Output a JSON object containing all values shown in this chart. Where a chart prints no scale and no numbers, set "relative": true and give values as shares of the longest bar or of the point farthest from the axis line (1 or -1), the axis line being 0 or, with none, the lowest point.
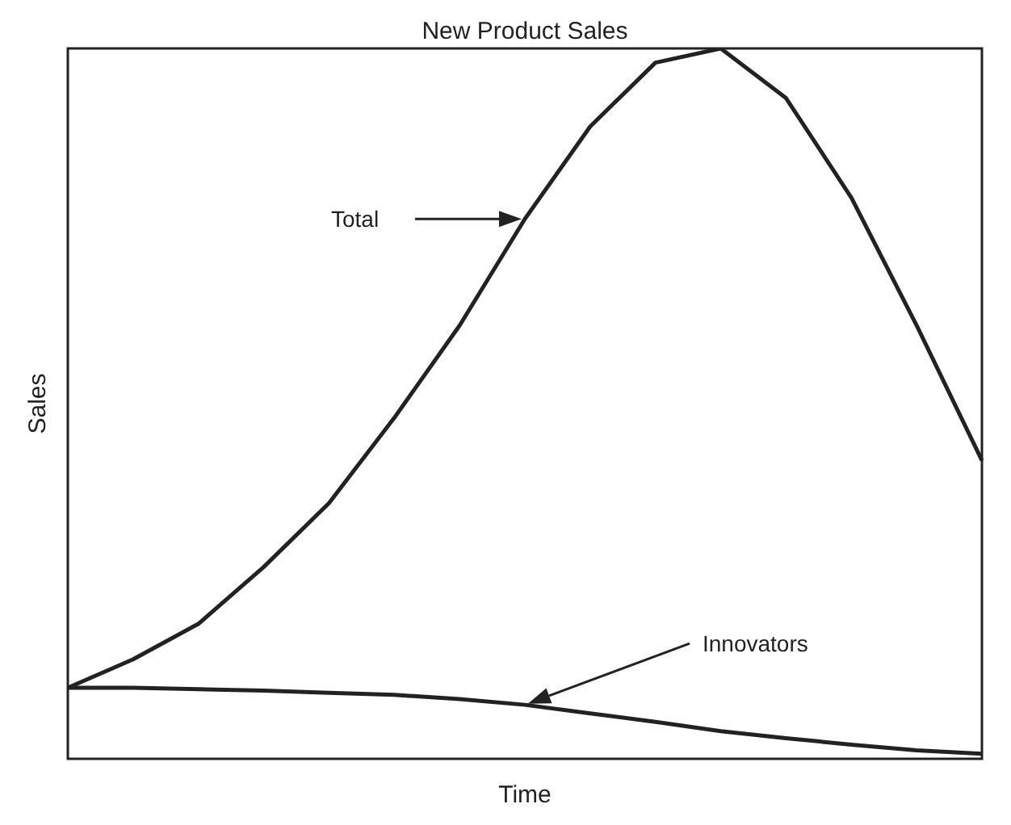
{
  "chart_data": {
    "type": "line",
    "title": "New Product Sales",
    "xlabel": "Time",
    "ylabel": "Sales",
    "relative": true,
    "categories": [
      null,
      null,
      null,
      null,
      null,
      null,
      null,
      null,
      null,
      null,
      null,
      null,
      null,
      null,
      null
    ],
    "series": [
      {
        "name": "Total",
        "color": "#222222",
        "values": [
          0.1,
          0.14,
          0.19,
          0.27,
          0.36,
          0.48,
          0.61,
          0.76,
          0.89,
          0.98,
          1.0,
          0.93,
          0.79,
          0.61,
          0.42
        ]
      },
      {
        "name": "Innovators",
        "color": "#222222",
        "values": [
          0.1,
          0.1,
          0.098,
          0.096,
          0.093,
          0.09,
          0.084,
          0.076,
          0.064,
          0.052,
          0.039,
          0.029,
          0.02,
          0.012,
          0.007
        ]
      }
    ],
    "grid": false,
    "marker": "none",
    "line_style": "solid"
  }
}
